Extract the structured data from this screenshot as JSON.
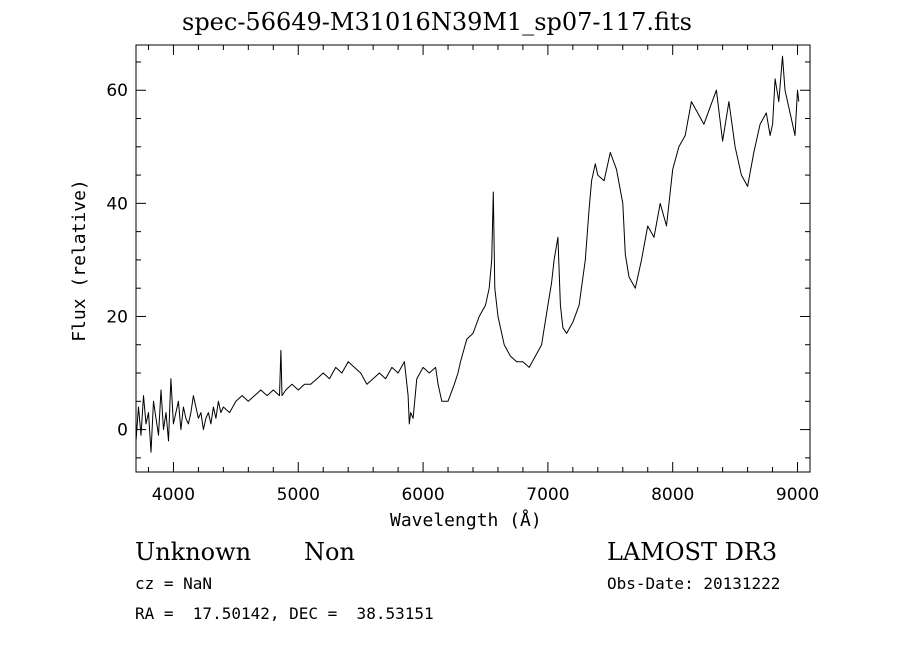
{
  "chart_data": {
    "type": "line",
    "title": "spec-56649-M31016N39M1_sp07-117.fits",
    "xlabel": "Wavelength (Å)",
    "ylabel": "Flux (relative)",
    "xlim": [
      3700,
      9100
    ],
    "ylim": [
      -7.5,
      68
    ],
    "x_ticks": [
      4000,
      5000,
      6000,
      7000,
      8000,
      9000
    ],
    "y_ticks": [
      0,
      20,
      40,
      60
    ],
    "grid": false,
    "line_color": "#000000",
    "series": [
      {
        "x": [
          3700,
          3720,
          3740,
          3760,
          3780,
          3800,
          3820,
          3840,
          3860,
          3880,
          3900,
          3920,
          3940,
          3960,
          3980,
          4000,
          4020,
          4040,
          4060,
          4080,
          4100,
          4120,
          4140,
          4160,
          4180,
          4200,
          4220,
          4240,
          4260,
          4280,
          4300,
          4320,
          4340,
          4360,
          4380,
          4400,
          4450,
          4500,
          4550,
          4600,
          4650,
          4700,
          4750,
          4800,
          4850,
          4861,
          4870,
          4900,
          4950,
          5000,
          5050,
          5100,
          5150,
          5200,
          5250,
          5300,
          5350,
          5400,
          5450,
          5500,
          5550,
          5600,
          5650,
          5700,
          5750,
          5800,
          5850,
          5880,
          5890,
          5900,
          5920,
          5950,
          6000,
          6050,
          6100,
          6120,
          6150,
          6200,
          6250,
          6280,
          6300,
          6350,
          6400,
          6450,
          6500,
          6530,
          6550,
          6563,
          6575,
          6600,
          6650,
          6700,
          6750,
          6800,
          6850,
          6900,
          6950,
          7000,
          7030,
          7050,
          7080,
          7100,
          7120,
          7150,
          7200,
          7250,
          7300,
          7330,
          7350,
          7380,
          7400,
          7450,
          7500,
          7550,
          7600,
          7620,
          7650,
          7700,
          7750,
          7800,
          7850,
          7900,
          7950,
          8000,
          8050,
          8100,
          8150,
          8200,
          8250,
          8300,
          8350,
          8400,
          8450,
          8500,
          8550,
          8600,
          8650,
          8700,
          8750,
          8780,
          8800,
          8820,
          8850,
          8880,
          8900,
          8950,
          8980,
          9000,
          9010
        ],
        "y": [
          -2,
          4,
          -1,
          6,
          1,
          3,
          -4,
          5,
          2,
          -1,
          7,
          0,
          3,
          -2,
          9,
          1,
          3,
          5,
          0,
          4,
          2,
          1,
          3,
          6,
          4,
          2,
          3,
          0,
          2,
          3,
          1,
          4,
          2,
          5,
          3,
          4,
          3,
          5,
          6,
          5,
          6,
          7,
          6,
          7,
          6,
          14,
          6,
          7,
          8,
          7,
          8,
          8,
          9,
          10,
          9,
          11,
          10,
          12,
          11,
          10,
          8,
          9,
          10,
          9,
          11,
          10,
          12,
          6,
          1,
          3,
          2,
          9,
          11,
          10,
          11,
          8,
          5,
          5,
          8,
          10,
          12,
          16,
          17,
          20,
          22,
          25,
          30,
          42,
          25,
          20,
          15,
          13,
          12,
          12,
          11,
          13,
          15,
          22,
          26,
          30,
          34,
          22,
          18,
          17,
          19,
          22,
          30,
          39,
          44,
          47,
          45,
          44,
          49,
          46,
          40,
          31,
          27,
          25,
          30,
          36,
          34,
          40,
          36,
          46,
          50,
          52,
          58,
          56,
          54,
          57,
          60,
          51,
          58,
          50,
          45,
          43,
          49,
          54,
          56,
          52,
          54,
          62,
          58,
          66,
          60,
          55,
          52,
          60,
          58
        ]
      }
    ],
    "footer": {
      "object_class": "Unknown",
      "subclass": "Non",
      "redshift": "cz = NaN",
      "coords": "RA =  17.50142, DEC =  38.53151",
      "survey": "LAMOST DR3",
      "obs_date": "Obs-Date: 20131222"
    }
  }
}
